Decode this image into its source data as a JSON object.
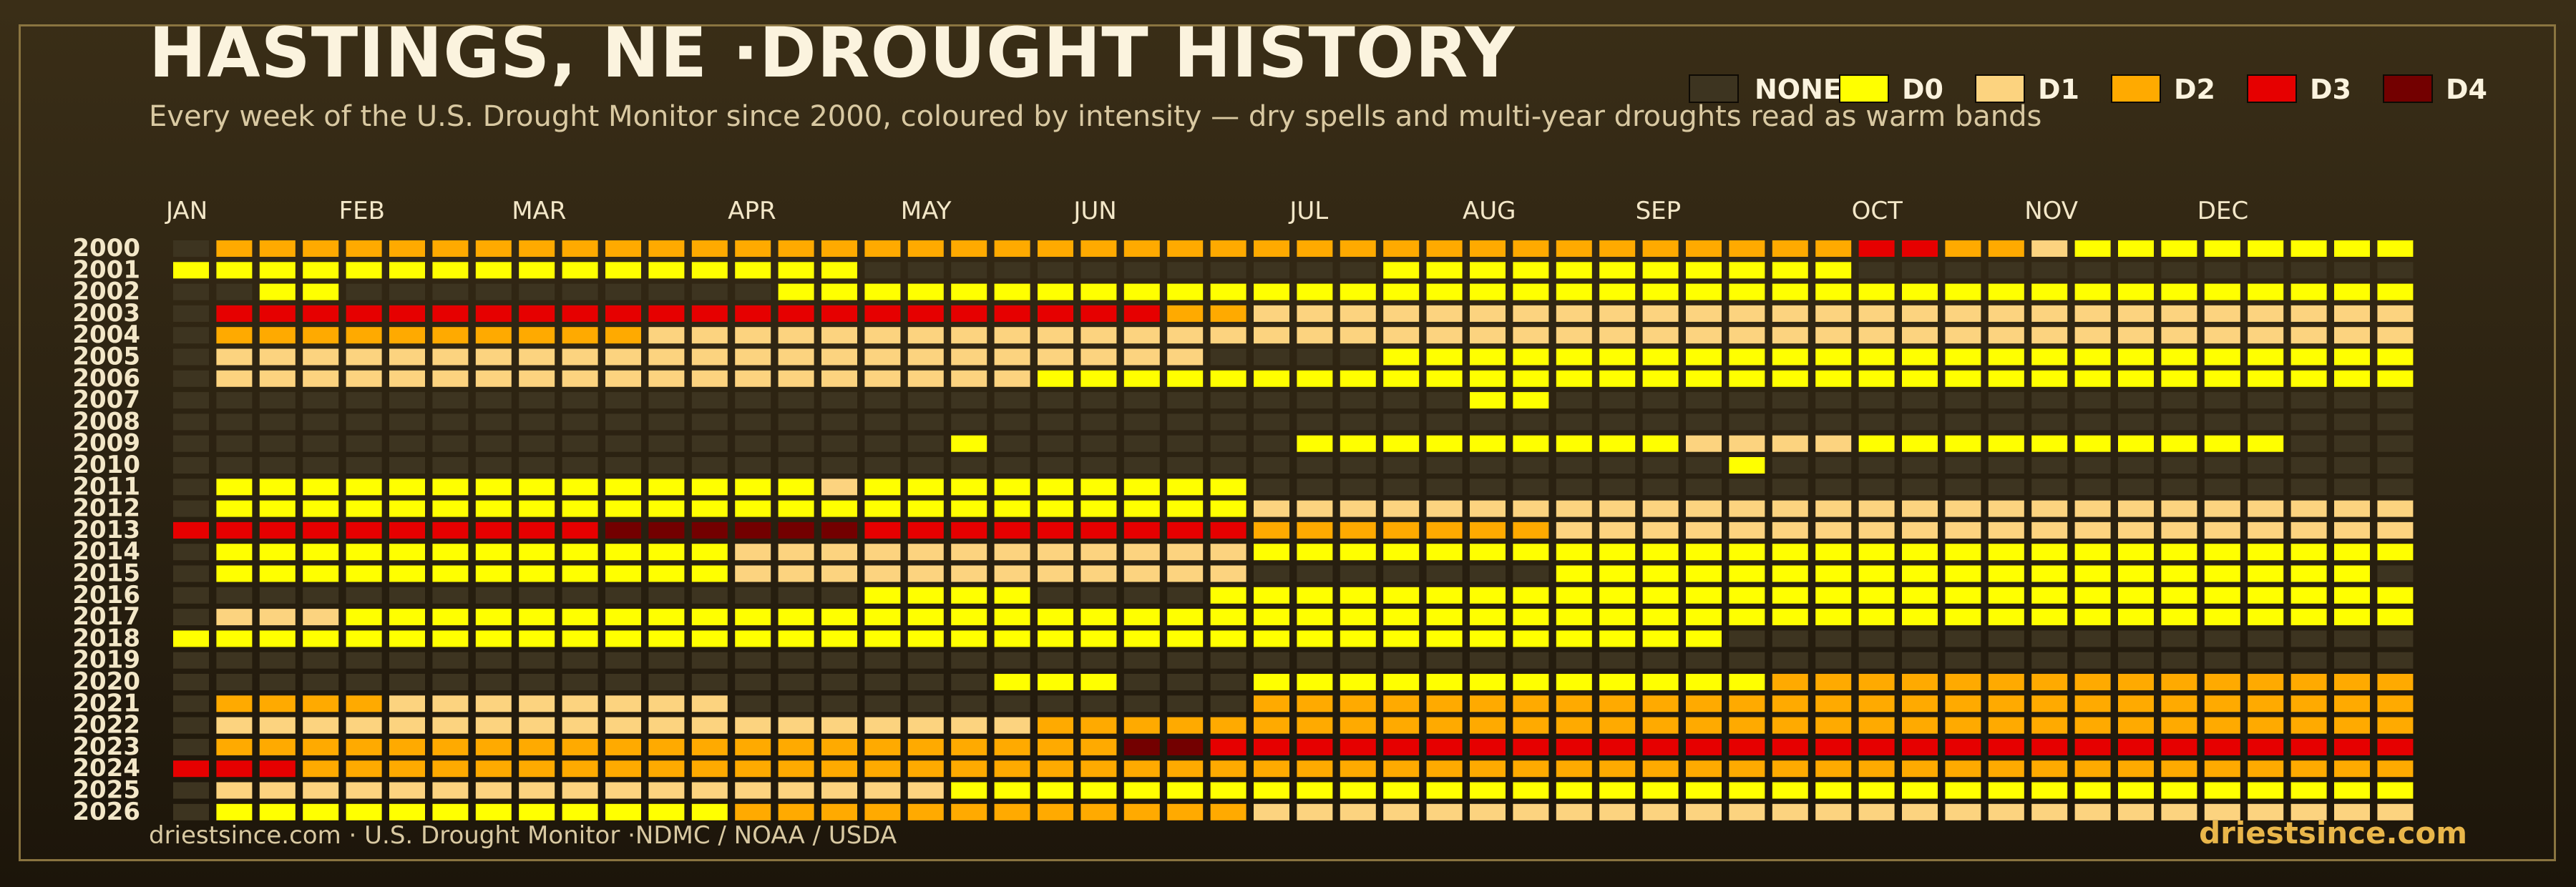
{
  "title": "HASTINGS, NE ·DROUGHT HISTORY",
  "subtitle": "Every week of the U.S. Drought Monitor since 2000, coloured by intensity — dry spells and multi-year droughts read as warm bands",
  "footer": {
    "source": "driestsince.com  · U.S. Drought Monitor ·NDMC / NOAA / USDA",
    "brand": "driestsince.com"
  },
  "colors": {
    "NONE": "#3d3420",
    "D0": "#ffff00",
    "D1": "#fcd37f",
    "D2": "#ffaa00",
    "D3": "#e60000",
    "D4": "#730000"
  },
  "chart_data": {
    "type": "heatmap",
    "title": "HASTINGS, NE ·DROUGHT HISTORY",
    "x_tick_labels": [
      "JAN",
      "FEB",
      "MAR",
      "APR",
      "MAY",
      "JUN",
      "JUL",
      "AUG",
      "SEP",
      "OCT",
      "NOV",
      "DEC"
    ],
    "x_tick_cols": [
      0,
      4,
      8,
      13,
      17,
      21,
      26,
      30,
      34,
      39,
      43,
      47
    ],
    "legend": [
      "NONE",
      "D0",
      "D1",
      "D2",
      "D3",
      "D4"
    ],
    "legend_position": "top-right",
    "key": "0=NONE 1=D0 2=D1 3=D2 4=D3 5=D4",
    "years": [
      2000,
      2001,
      2002,
      2003,
      2004,
      2005,
      2006,
      2007,
      2008,
      2009,
      2010,
      2011,
      2012,
      2013,
      2014,
      2015,
      2016,
      2017,
      2018,
      2019,
      2020,
      2021,
      2022,
      2023,
      2024,
      2025,
      2026
    ],
    "rows": [
      "0333333333333333333333333333333333333334433211111111",
      "1111111111111111000000000000111111111110000000000000",
      "0011000000000011111111111111111111111111111111111111",
      "0444444444444444444444433222222222222222222222222222",
      "0333333333322222222222222222222222222222222222222222",
      "0222222222222222222222220000111111111111111111111111",
      "0222222222222222222211111111111111111111111111111111",
      "0000000000000000000000000000001100000000000000000000",
      "0000000000000000000000000000000000000000000000000000",
      "0000000000000000001000000011111111122221111111111000",
      "0000000000000000000000000000000000001000000000000000",
      "0111111111111112111111111000000000000000000000000000",
      "0111111111111111111111111222222222222222222222222222",
      "4444444444555555444444444333333322222222222222222222",
      "0111111111111222222222222111111111111111111111111111",
      "0111111111111222222222222000000011111111111111111110",
      "0000000000000000111100001111111111111111111111111111",
      "0222111111111111111111111111111111111111111111111111",
      "1111111111111111111111111111111111110000000000000000",
      "0000000000000000000000000000000000000000000000000000",
      "0000000000000000000111000111111111111333333333333333",
      "0333322222222000000000000333333333333333333333333333",
      "0222222222222222222233333333333333333333333333333333",
      "0333333333333333333333554444444444444444444444444444",
      "4443333333333333333333333333333333333333333333333333",
      "0222222222222222221111111111111111111111111111111111",
      "0111111111111333333333333222222222222222222222222222"
    ]
  }
}
